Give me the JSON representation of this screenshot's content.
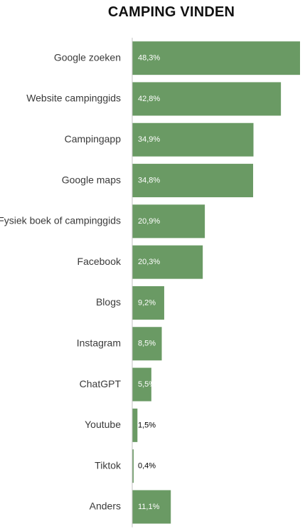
{
  "chart_data": {
    "type": "bar",
    "orientation": "horizontal",
    "title": "CAMPING VINDEN",
    "categories": [
      "Google zoeken",
      "Website campinggids",
      "Campingapp",
      "Google maps",
      "Fysiek boek of campinggids",
      "Facebook",
      "Blogs",
      "Instagram",
      "ChatGPT",
      "Youtube",
      "Tiktok",
      "Anders"
    ],
    "values": [
      48.3,
      42.8,
      34.9,
      34.8,
      20.9,
      20.3,
      9.2,
      8.5,
      5.5,
      1.5,
      0.4,
      11.1
    ],
    "labels": [
      "48,3%",
      "42,8%",
      "34,9%",
      "34,8%",
      "20,9%",
      "20,3%",
      "9,2%",
      "8,5%",
      "5,5%",
      "1,5%",
      "0,4%",
      "11,1%"
    ],
    "xlim": [
      0,
      48.3
    ],
    "grid": false,
    "legend": "none",
    "bar_color": "#6a9a64",
    "label_color_inside": "#ffffff",
    "label_color_outside": "#000000",
    "axis_color": "#c0c0c0"
  }
}
